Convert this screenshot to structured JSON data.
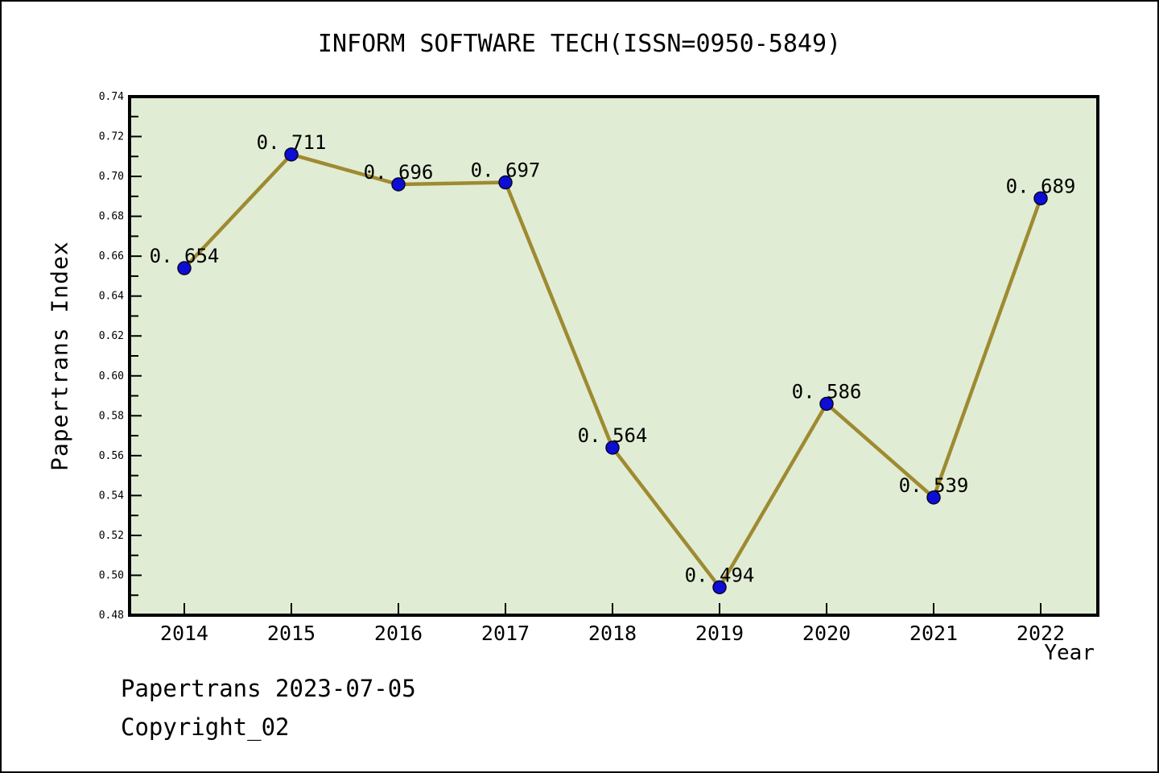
{
  "title": "INFORM SOFTWARE TECH(ISSN=0950-5849)",
  "footer": {
    "line1": "Papertrans 2023-07-05",
    "line2": "Copyright_02"
  },
  "chart_data": {
    "type": "line",
    "title": "INFORM SOFTWARE TECH(ISSN=0950-5849)",
    "xlabel": "Year",
    "ylabel": "Papertrans Index",
    "categories": [
      "2014",
      "2015",
      "2016",
      "2017",
      "2018",
      "2019",
      "2020",
      "2021",
      "2022"
    ],
    "values": [
      0.654,
      0.711,
      0.696,
      0.697,
      0.564,
      0.494,
      0.586,
      0.539,
      0.689
    ],
    "point_labels": [
      "0. 654",
      "0. 711",
      "0. 696",
      "0. 697",
      "0. 564",
      "0. 494",
      "0. 586",
      "0. 539",
      "0. 689"
    ],
    "ylim": [
      0.48,
      0.74
    ],
    "ytick_labels": [
      "0.48",
      "0.50",
      "0.52",
      "0.54",
      "0.56",
      "0.58",
      "0.60",
      "0.62",
      "0.64",
      "0.66",
      "0.68",
      "0.70",
      "0.72",
      "0.74"
    ],
    "ytick_step": 0.02,
    "yminor_step": 0.01,
    "grid": false,
    "legend": "none",
    "colors": {
      "plot_bg": "#e1ecd4",
      "frame": "#000000",
      "line": "#9e8a31",
      "marker": "#0d0dd6",
      "marker_edge": "#05052a",
      "text": "#000000"
    }
  }
}
